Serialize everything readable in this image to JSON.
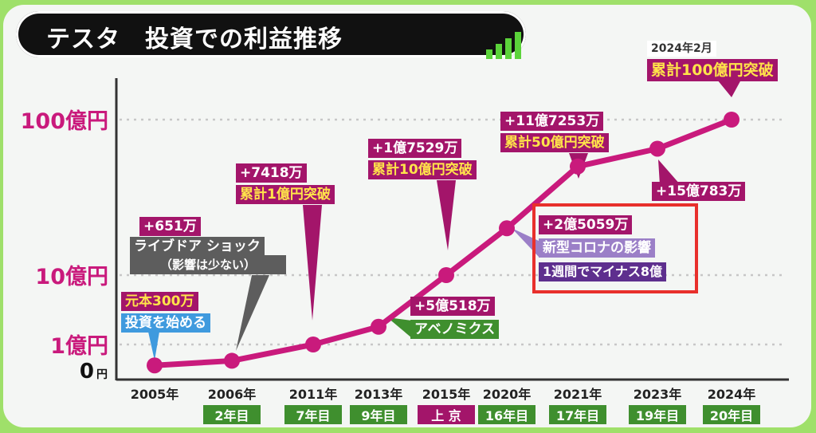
{
  "header": {
    "title": "テスタ　投資での利益推移"
  },
  "colors": {
    "line": "#c91a7c",
    "magenta_box": "#a3156a",
    "yellow_text": "#ffe44a",
    "green_box": "#3f8f2e",
    "highlight_border": "#e8302c"
  },
  "chart_data": {
    "type": "line",
    "title": "テスタ　投資での利益推移",
    "xlabel": "",
    "ylabel": "",
    "y_scale": "log",
    "y_ticks": [
      {
        "label": "100億円",
        "value": 10000000000
      },
      {
        "label": "10億円",
        "value": 1000000000
      },
      {
        "label": "1億円",
        "value": 100000000
      },
      {
        "label": "0",
        "unit": "円",
        "value": 0
      }
    ],
    "categories": [
      "2005年",
      "2006年",
      "2011年",
      "2013年",
      "2015年",
      "2020年",
      "2021年",
      "2023年",
      "2024年"
    ],
    "sublabels": [
      "",
      "2年目",
      "7年目",
      "9年目",
      "上 京",
      "16年目",
      "17年目",
      "19年目",
      "20年目"
    ],
    "series": [
      {
        "values": [
          3000000,
          6510000,
          100000000,
          180000000,
          1000000000,
          2000000000,
          5000000000,
          6500000000,
          10000000000
        ]
      }
    ],
    "annotations": {
      "a2005_1": "元本300万",
      "a2005_2": "投資を始める",
      "a2006_1": "+651万",
      "a2006_2": "ライブドア ショック",
      "a2006_3": "（影響は少ない）",
      "a2011_1": "+7418万",
      "a2011_2": "累計1億円突破",
      "a2013_1": "+5億518万",
      "a2013_2": "アベノミクス",
      "a2015_1": "+1億7529万",
      "a2015_2": "累計10億円突破",
      "a2020_1": "+2億5059万",
      "a2020_2": "新型コロナの影響",
      "a2020_3": "1週間でマイナス8億",
      "a2021_1": "+11億7253万",
      "a2021_2": "累計50億円突破",
      "a2023_1": "+15億783万",
      "a2024_1": "2024年2月",
      "a2024_2": "累計100億円突破"
    }
  }
}
